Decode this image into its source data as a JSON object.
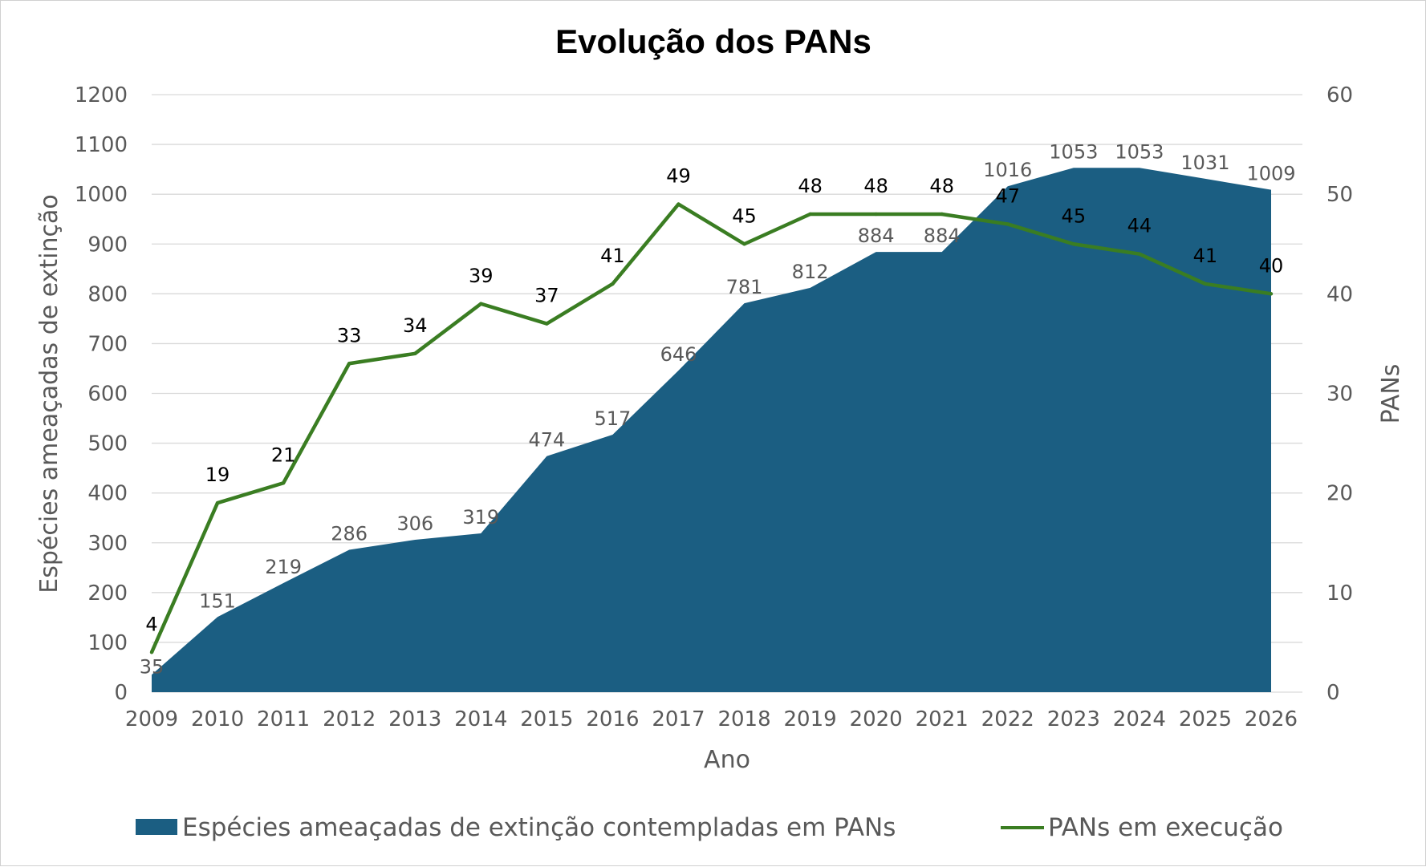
{
  "chart_data": {
    "type": "area",
    "title": "Evolução dos PANs",
    "xlabel": "Ano",
    "ylabel": "Espécies ameaçadas de extinção",
    "y2label": "PANs",
    "ylim": [
      0,
      1200
    ],
    "y2lim": [
      0,
      60
    ],
    "yticks": [
      "0",
      "100",
      "200",
      "300",
      "400",
      "500",
      "600",
      "700",
      "800",
      "900",
      "1000",
      "1100",
      "1200"
    ],
    "y2ticks": [
      "0",
      "10",
      "20",
      "30",
      "40",
      "50",
      "60"
    ],
    "grid": true,
    "legend_position": "bottom",
    "categories": [
      "2009",
      "2010",
      "2011",
      "2012",
      "2013",
      "2014",
      "2015",
      "2016",
      "2017",
      "2018",
      "2019",
      "2020",
      "2021",
      "2022",
      "2023",
      "2024",
      "2025",
      "2026"
    ],
    "series": [
      {
        "name": "Espécies ameaçadas de extinção contempladas em PANs",
        "type": "area",
        "axis": "left",
        "color": "#1b5e82",
        "values": [
          35,
          151,
          219,
          286,
          306,
          319,
          474,
          517,
          646,
          781,
          812,
          884,
          884,
          1016,
          1053,
          1053,
          1031,
          1009
        ]
      },
      {
        "name": "PANs em execução",
        "type": "line",
        "axis": "right",
        "color": "#3a7d22",
        "values": [
          4,
          19,
          21,
          33,
          34,
          39,
          37,
          41,
          49,
          45,
          48,
          48,
          48,
          47,
          45,
          44,
          41,
          40
        ]
      }
    ]
  }
}
